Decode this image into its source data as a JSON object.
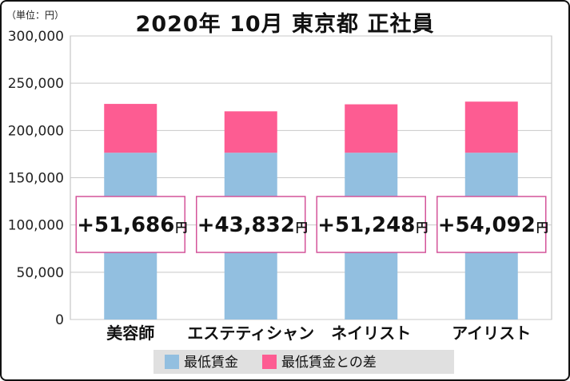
{
  "unit_label": "（単位：円）",
  "title": "2020年 10月  東京都  正社員",
  "chart_data": {
    "type": "bar",
    "stacked": true,
    "categories": [
      "美容師",
      "エステティシャン",
      "ネイリスト",
      "アイリスト"
    ],
    "series": [
      {
        "name": "最低賃金",
        "values": [
          176424,
          176424,
          176424,
          176424
        ],
        "color": "#92bfe0"
      },
      {
        "name": "最低賃金との差",
        "values": [
          51686,
          43832,
          51248,
          54092
        ],
        "color": "#fd5c92"
      }
    ],
    "diff_labels": [
      "+51,686",
      "+43,832",
      "+51,248",
      "+54,092"
    ],
    "diff_unit": "円",
    "ylim": [
      0,
      300000
    ],
    "yticks": [
      "0",
      "50,000",
      "100,000",
      "150,000",
      "200,000",
      "250,000",
      "300,000"
    ],
    "grid": true,
    "legend_position": "bottom",
    "label_box_border_color": "#d4549a"
  }
}
